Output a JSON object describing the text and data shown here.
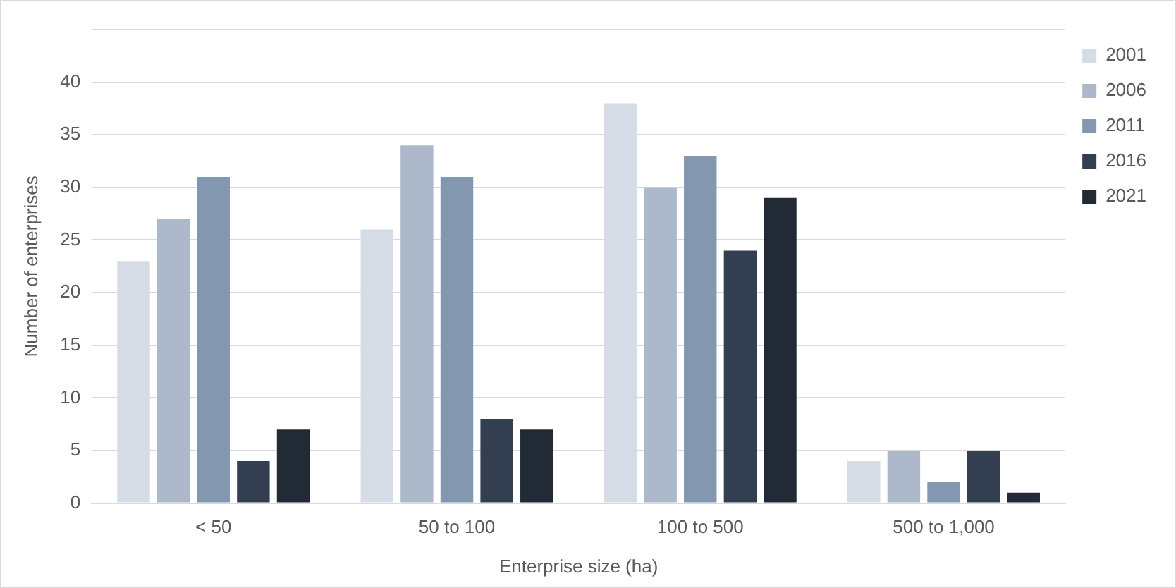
{
  "chart_data": {
    "type": "bar",
    "xlabel": "Enterprise size (ha)",
    "ylabel": "Number of enterprises",
    "categories": [
      "< 50",
      "50 to 100",
      "100 to 500",
      "500 to 1,000"
    ],
    "series": [
      {
        "name": "2001",
        "color": "#d6dce5",
        "values": [
          23,
          26,
          38,
          4
        ]
      },
      {
        "name": "2006",
        "color": "#adb9ca",
        "values": [
          27,
          34,
          30,
          5
        ]
      },
      {
        "name": "2011",
        "color": "#8497b0",
        "values": [
          31,
          31,
          33,
          2
        ]
      },
      {
        "name": "2016",
        "color": "#333f50",
        "values": [
          4,
          8,
          24,
          5
        ]
      },
      {
        "name": "2021",
        "color": "#222a35",
        "values": [
          7,
          7,
          29,
          1
        ]
      }
    ],
    "ylim": [
      0,
      45
    ],
    "yticks": [
      0,
      5,
      10,
      15,
      20,
      25,
      30,
      35,
      40,
      {
        "value": 45,
        "label": null
      }
    ],
    "grid": "y",
    "legend": "top right"
  }
}
